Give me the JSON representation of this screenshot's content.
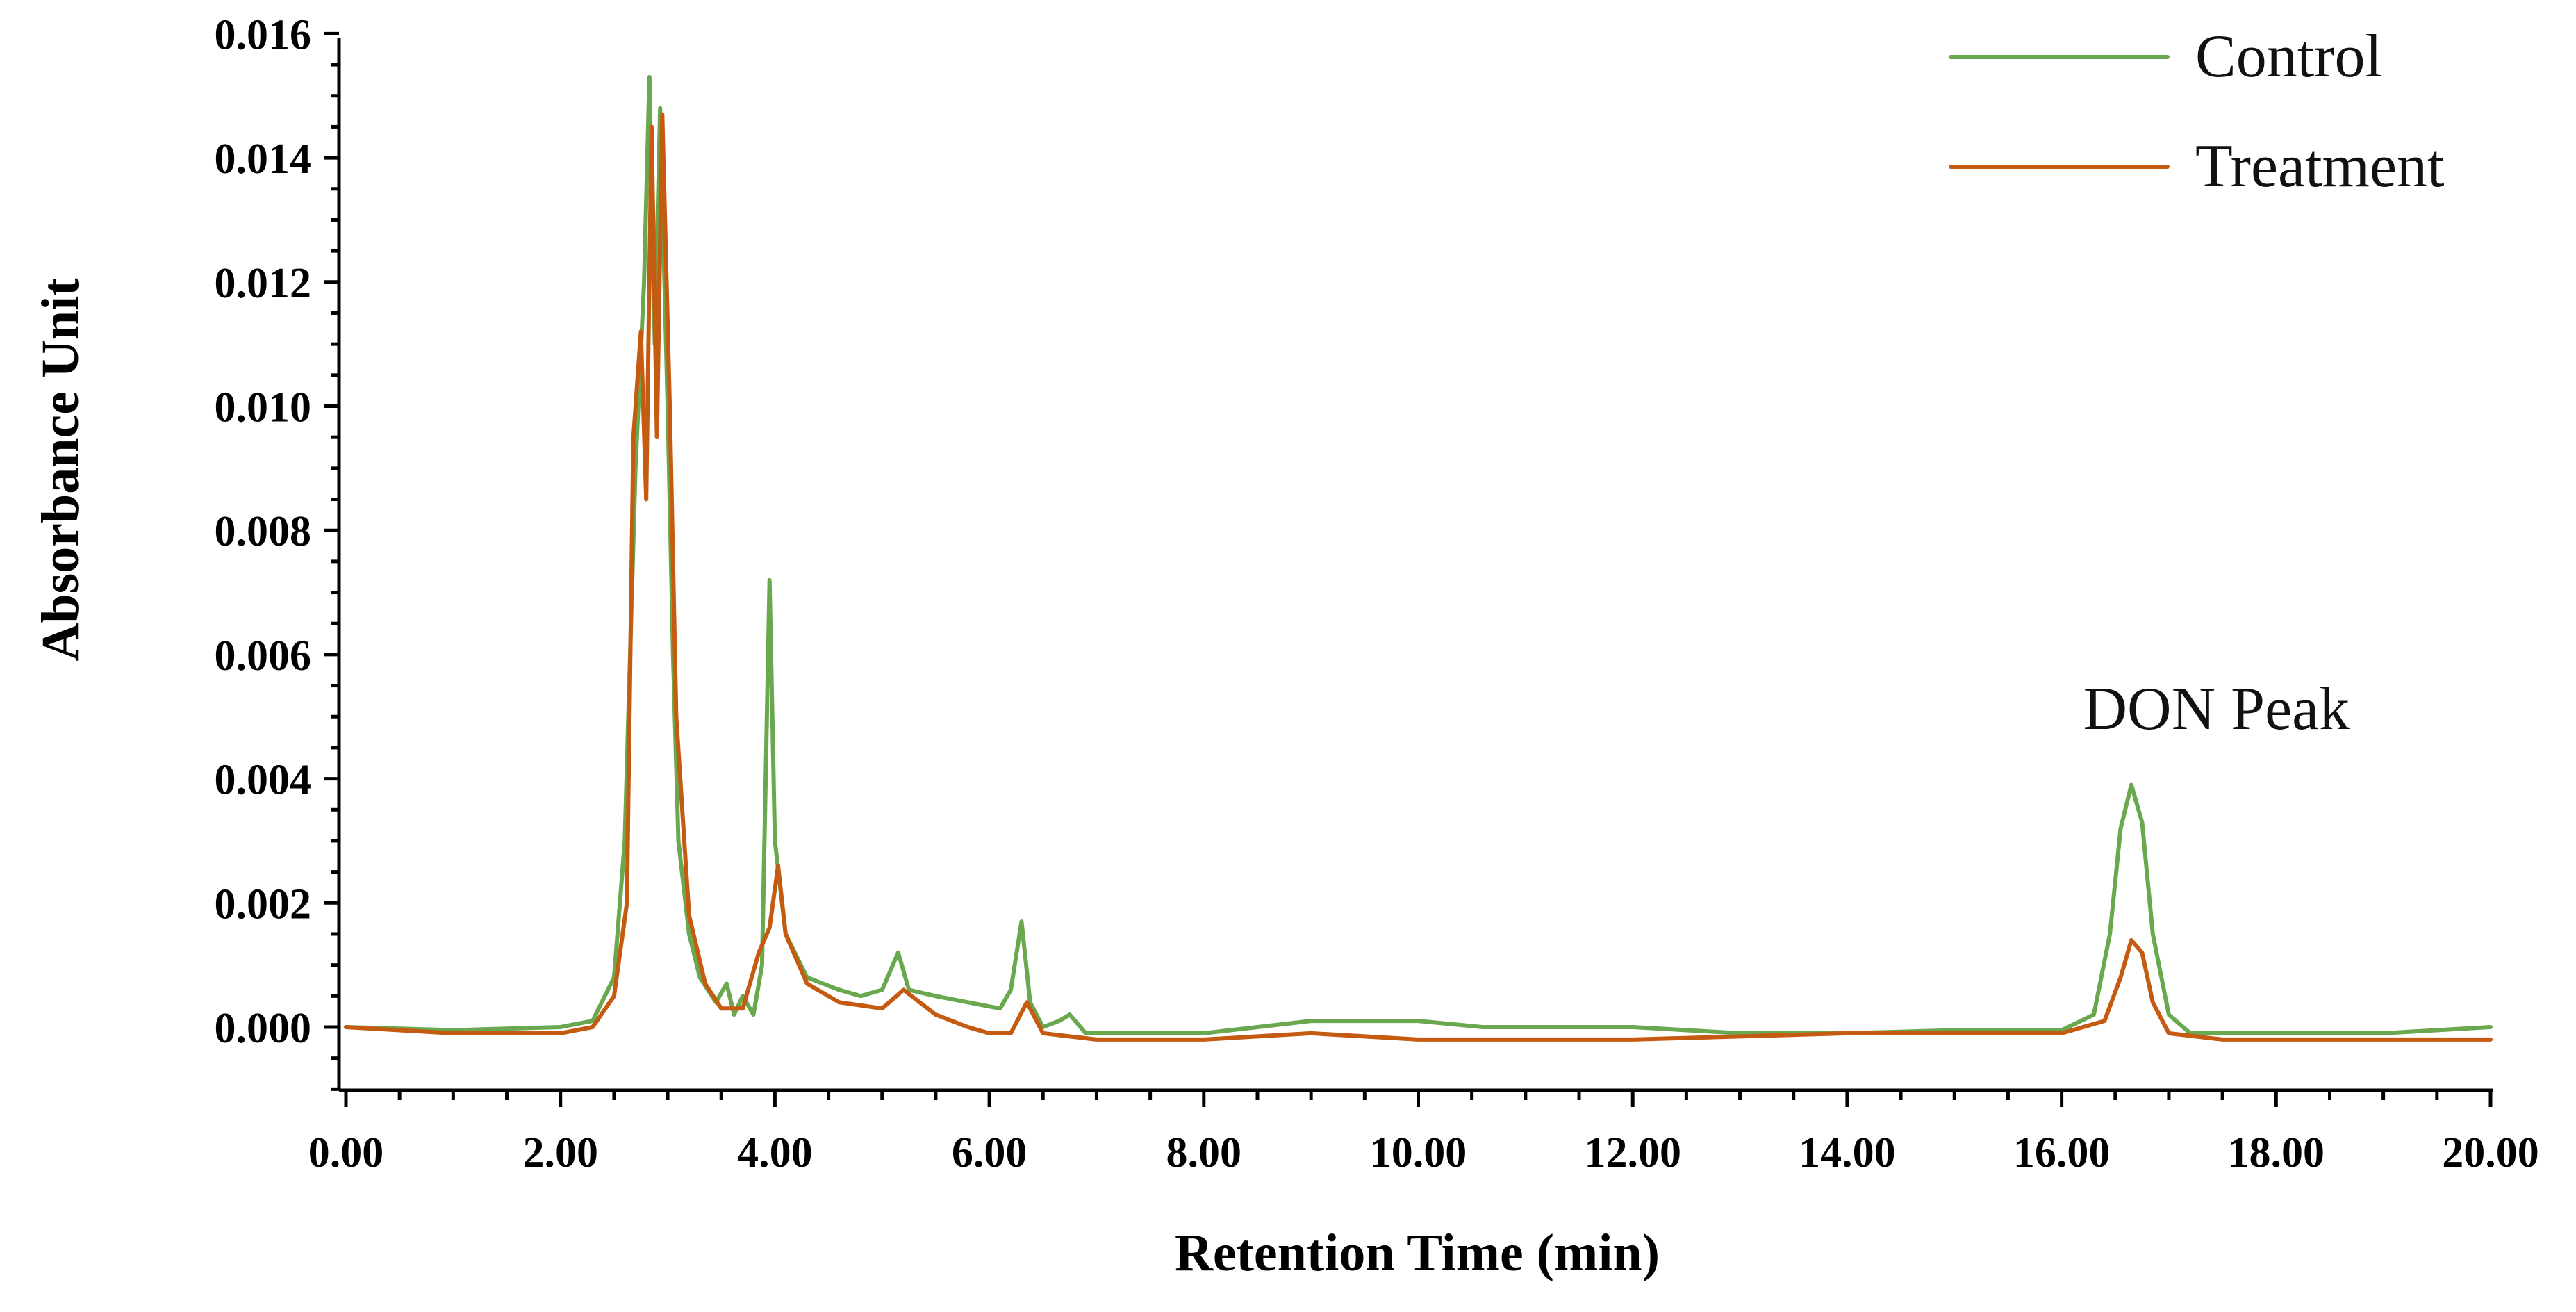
{
  "chart_data": {
    "type": "line",
    "title": "",
    "xlabel": "Retention Time (min)",
    "ylabel": "Absorbance Unit",
    "xlim": [
      0,
      20
    ],
    "ylim": [
      -0.001,
      0.016
    ],
    "x_ticks": [
      0,
      2,
      4,
      6,
      8,
      10,
      12,
      14,
      16,
      18,
      20
    ],
    "x_tick_labels": [
      "0.00",
      "2.00",
      "4.00",
      "6.00",
      "8.00",
      "10.00",
      "12.00",
      "14.00",
      "16.00",
      "18.00",
      "20.00"
    ],
    "y_ticks": [
      0,
      0.002,
      0.004,
      0.006,
      0.008,
      0.01,
      0.012,
      0.014,
      0.016
    ],
    "y_tick_labels": [
      "0.000",
      "0.002",
      "0.004",
      "0.006",
      "0.008",
      "0.010",
      "0.012",
      "0.014",
      "0.016"
    ],
    "x_minor_step": 0.5,
    "y_minor_step": 0.0005,
    "grid": false,
    "legend_position": "top-right",
    "series": [
      {
        "name": "Control",
        "color": "#6aa84f",
        "points": [
          [
            0,
            0.0
          ],
          [
            1,
            -5e-05
          ],
          [
            2,
            0.0
          ],
          [
            2.3,
            0.0001
          ],
          [
            2.5,
            0.0008
          ],
          [
            2.6,
            0.003
          ],
          [
            2.7,
            0.009
          ],
          [
            2.78,
            0.012
          ],
          [
            2.83,
            0.0153
          ],
          [
            2.88,
            0.011
          ],
          [
            2.93,
            0.0148
          ],
          [
            3.0,
            0.01
          ],
          [
            3.05,
            0.006
          ],
          [
            3.1,
            0.003
          ],
          [
            3.2,
            0.0015
          ],
          [
            3.3,
            0.0008
          ],
          [
            3.45,
            0.0004
          ],
          [
            3.55,
            0.0007
          ],
          [
            3.62,
            0.0002
          ],
          [
            3.7,
            0.0005
          ],
          [
            3.8,
            0.0002
          ],
          [
            3.88,
            0.001
          ],
          [
            3.95,
            0.0072
          ],
          [
            4.0,
            0.003
          ],
          [
            4.1,
            0.0015
          ],
          [
            4.3,
            0.0008
          ],
          [
            4.6,
            0.0006
          ],
          [
            4.8,
            0.0005
          ],
          [
            5.0,
            0.0006
          ],
          [
            5.15,
            0.0012
          ],
          [
            5.25,
            0.0006
          ],
          [
            5.5,
            0.0005
          ],
          [
            5.8,
            0.0004
          ],
          [
            6.1,
            0.0003
          ],
          [
            6.2,
            0.0006
          ],
          [
            6.3,
            0.0017
          ],
          [
            6.38,
            0.0004
          ],
          [
            6.5,
            0.0
          ],
          [
            6.65,
            0.0001
          ],
          [
            6.75,
            0.0002
          ],
          [
            6.9,
            -0.0001
          ],
          [
            8.0,
            -0.0001
          ],
          [
            9.0,
            0.0001
          ],
          [
            10.0,
            0.0001
          ],
          [
            10.6,
            0.0
          ],
          [
            12.0,
            0.0
          ],
          [
            13.0,
            -0.0001
          ],
          [
            14.0,
            -0.0001
          ],
          [
            15.0,
            -5e-05
          ],
          [
            16.0,
            -5e-05
          ],
          [
            16.3,
            0.0002
          ],
          [
            16.45,
            0.0015
          ],
          [
            16.55,
            0.0032
          ],
          [
            16.65,
            0.0039
          ],
          [
            16.75,
            0.0033
          ],
          [
            16.85,
            0.0015
          ],
          [
            17.0,
            0.0002
          ],
          [
            17.2,
            -0.0001
          ],
          [
            18.0,
            -0.0001
          ],
          [
            19.0,
            -0.0001
          ],
          [
            20.0,
            0.0
          ]
        ]
      },
      {
        "name": "Treatment",
        "color": "#c55a11",
        "points": [
          [
            0,
            0.0
          ],
          [
            1,
            -0.0001
          ],
          [
            2,
            -0.0001
          ],
          [
            2.3,
            0.0
          ],
          [
            2.5,
            0.0005
          ],
          [
            2.62,
            0.002
          ],
          [
            2.68,
            0.0095
          ],
          [
            2.75,
            0.0112
          ],
          [
            2.8,
            0.0085
          ],
          [
            2.85,
            0.0145
          ],
          [
            2.9,
            0.0095
          ],
          [
            2.95,
            0.0147
          ],
          [
            3.02,
            0.01
          ],
          [
            3.08,
            0.005
          ],
          [
            3.2,
            0.0018
          ],
          [
            3.35,
            0.0007
          ],
          [
            3.5,
            0.0003
          ],
          [
            3.7,
            0.0003
          ],
          [
            3.85,
            0.0012
          ],
          [
            3.95,
            0.0016
          ],
          [
            4.03,
            0.0026
          ],
          [
            4.1,
            0.0015
          ],
          [
            4.3,
            0.0007
          ],
          [
            4.6,
            0.0004
          ],
          [
            5.0,
            0.0003
          ],
          [
            5.2,
            0.0006
          ],
          [
            5.5,
            0.0002
          ],
          [
            5.8,
            0.0
          ],
          [
            6.0,
            -0.0001
          ],
          [
            6.2,
            -0.0001
          ],
          [
            6.35,
            0.0004
          ],
          [
            6.5,
            -0.0001
          ],
          [
            7.0,
            -0.0002
          ],
          [
            8.0,
            -0.0002
          ],
          [
            9.0,
            -0.0001
          ],
          [
            10.0,
            -0.0002
          ],
          [
            11.0,
            -0.0002
          ],
          [
            12.0,
            -0.0002
          ],
          [
            13.0,
            -0.00015
          ],
          [
            14.0,
            -0.0001
          ],
          [
            15.0,
            -0.0001
          ],
          [
            16.0,
            -0.0001
          ],
          [
            16.4,
            0.0001
          ],
          [
            16.55,
            0.0008
          ],
          [
            16.65,
            0.0014
          ],
          [
            16.75,
            0.0012
          ],
          [
            16.85,
            0.0004
          ],
          [
            17.0,
            -0.0001
          ],
          [
            17.5,
            -0.0002
          ],
          [
            18.0,
            -0.0002
          ],
          [
            19.0,
            -0.0002
          ],
          [
            20.0,
            -0.0002
          ]
        ]
      }
    ],
    "annotations": [
      {
        "text": "DON Peak",
        "x": 16.2,
        "y": 0.0048
      }
    ]
  }
}
